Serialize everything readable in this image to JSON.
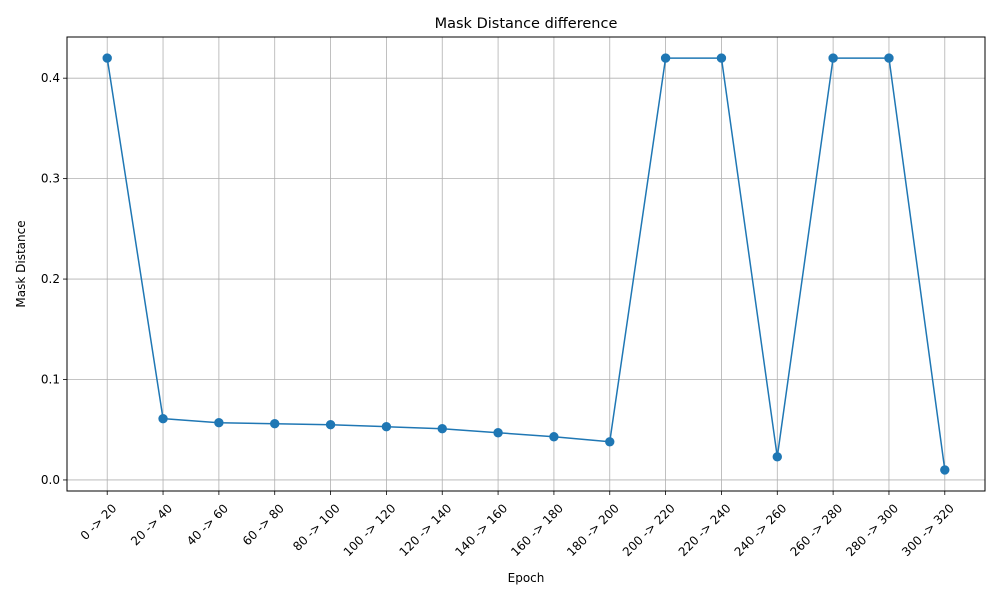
{
  "chart_data": {
    "type": "line",
    "title": "Mask Distance difference",
    "xlabel": "Epoch",
    "ylabel": "Mask Distance",
    "categories": [
      "0 -> 20",
      "20 -> 40",
      "40 -> 60",
      "60 -> 80",
      "80 -> 100",
      "100 -> 120",
      "120 -> 140",
      "140 -> 160",
      "160 -> 180",
      "180 -> 200",
      "200 -> 220",
      "220 -> 240",
      "240 -> 260",
      "260 -> 280",
      "280 -> 300",
      "300 -> 320"
    ],
    "series": [
      {
        "values": [
          0.42,
          0.061,
          0.057,
          0.056,
          0.055,
          0.053,
          0.051,
          0.047,
          0.043,
          0.038,
          0.42,
          0.42,
          0.023,
          0.42,
          0.42,
          0.01
        ]
      }
    ],
    "ylim": [
      -0.011,
      0.441
    ],
    "yticks": [
      0.0,
      0.1,
      0.2,
      0.3,
      0.4
    ],
    "ytick_labels": [
      "0.0",
      "0.1",
      "0.2",
      "0.3",
      "0.4"
    ],
    "grid": true,
    "line_color": "#1f77b4",
    "marker": "circle"
  }
}
